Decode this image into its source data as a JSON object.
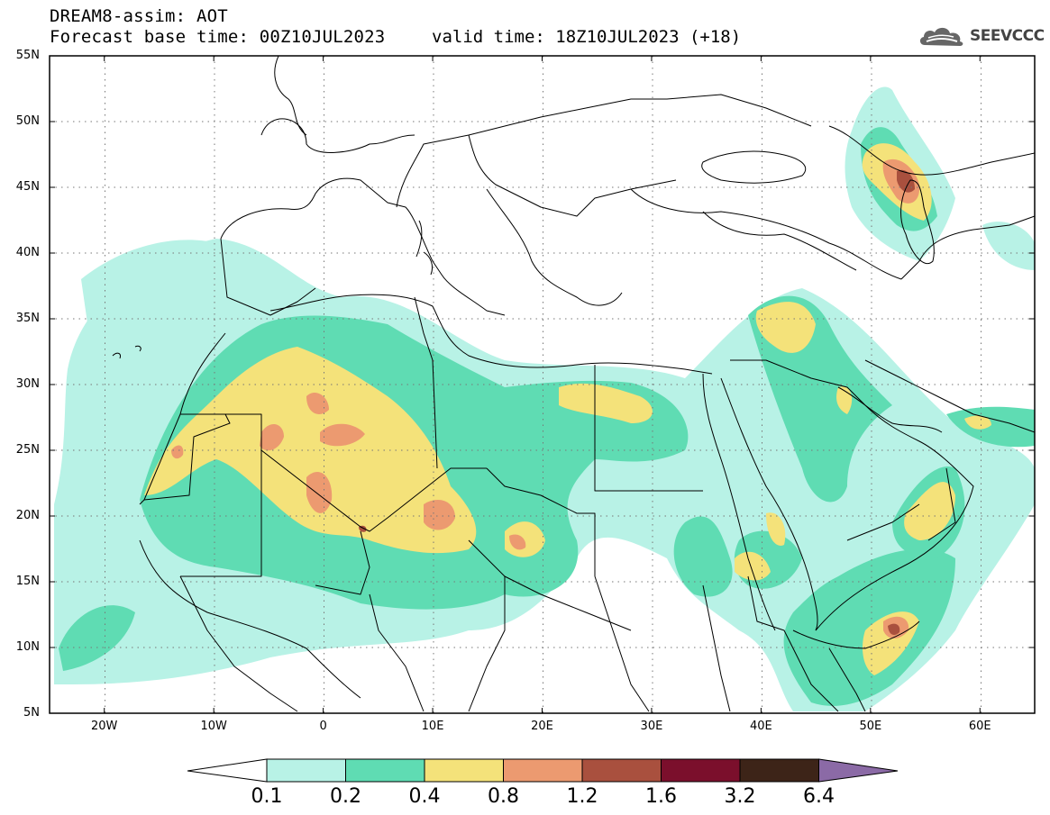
{
  "header": {
    "title": "DREAM8-assim: AOT",
    "base_time": "Forecast base time: 00Z10JUL2023",
    "valid_time": "valid time: 18Z10JUL2023 (+18)"
  },
  "logo": {
    "text": "SEEVCCC",
    "icon": "cloud-icon"
  },
  "map": {
    "region": "North Africa, Europe and Middle East",
    "lat_labels": [
      "55N",
      "50N",
      "45N",
      "40N",
      "35N",
      "30N",
      "25N",
      "20N",
      "15N",
      "10N",
      "5N"
    ],
    "lon_labels": [
      "20W",
      "10W",
      "0",
      "10E",
      "20E",
      "30E",
      "40E",
      "50E",
      "60E"
    ],
    "extent": {
      "lon": [
        -25,
        65
      ],
      "lat": [
        5,
        55
      ]
    },
    "gridlines": "dotted",
    "borders": "black"
  },
  "colorbar": {
    "labels": [
      "0.1",
      "0.2",
      "0.4",
      "0.8",
      "1.2",
      "1.6",
      "3.2",
      "6.4"
    ],
    "colors": [
      "#ffffff",
      "#b8f2e6",
      "#5fdcb3",
      "#f4e27a",
      "#ec9a70",
      "#a9503e",
      "#7b0f2c",
      "#3d2418",
      "#8b6aa6"
    ]
  }
}
